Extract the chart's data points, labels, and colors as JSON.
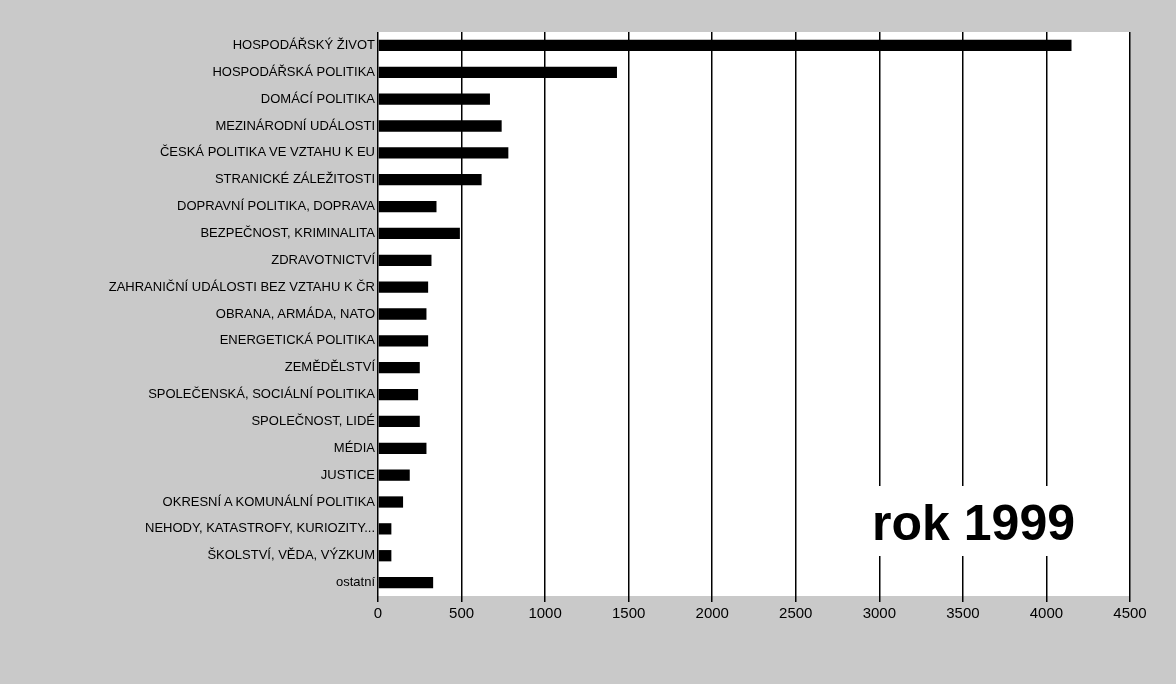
{
  "chart_data": {
    "type": "bar",
    "orientation": "horizontal",
    "categories": [
      "HOSPODÁŘSKÝ ŽIVOT",
      "HOSPODÁŘSKÁ POLITIKA",
      "DOMÁCÍ POLITIKA",
      "MEZINÁRODNÍ UDÁLOSTI",
      "ČESKÁ POLITIKA VE VZTAHU K EU",
      "STRANICKÉ ZÁLEŽITOSTI",
      "DOPRAVNÍ POLITIKA, DOPRAVA",
      "BEZPEČNOST, KRIMINALITA",
      "ZDRAVOTNICTVÍ",
      "ZAHRANIČNÍ UDÁLOSTI BEZ VZTAHU K ČR",
      "OBRANA, ARMÁDA, NATO",
      "ENERGETICKÁ POLITIKA",
      "ZEMĚDĚLSTVÍ",
      "SPOLEČENSKÁ, SOCIÁLNÍ POLITIKA",
      "SPOLEČNOST, LIDÉ",
      "MÉDIA",
      "JUSTICE",
      "OKRESNÍ A KOMUNÁLNÍ POLITIKA",
      "NEHODY, KATASTROFY, KURIOZITY...",
      "ŠKOLSTVÍ, VĚDA, VÝZKUM",
      "ostatní"
    ],
    "values": [
      4150,
      1430,
      670,
      740,
      780,
      620,
      350,
      490,
      320,
      300,
      290,
      300,
      250,
      240,
      250,
      290,
      190,
      150,
      80,
      80,
      330
    ],
    "color": "#000000",
    "xlim": [
      0,
      4500
    ],
    "xticks": [
      0,
      500,
      1000,
      1500,
      2000,
      2500,
      3000,
      3500,
      4000,
      4500
    ],
    "grid": "x",
    "legend": false,
    "annotations": [
      "rok 1999"
    ]
  }
}
